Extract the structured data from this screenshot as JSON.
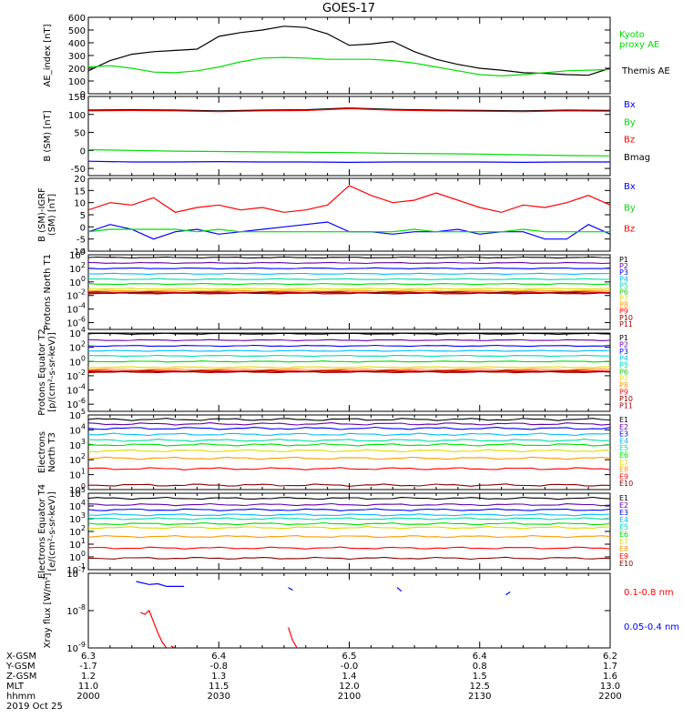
{
  "title": "GOES-17",
  "colors": {
    "black": "#000000",
    "red": "#ff0000",
    "green": "#00dd00",
    "blue": "#0000ff",
    "darkred": "#8b0000",
    "purple": "#6600aa",
    "navy": "#000099",
    "cyan": "#00bbff",
    "teal": "#00ddaa",
    "lime": "#66dd00",
    "yellow": "#dddd00",
    "orange": "#ff9900"
  },
  "chart_data": [
    {
      "type": "line",
      "ylabel": "AE_index [nT]",
      "ylim": [
        0,
        600
      ],
      "yticks": [
        0,
        100,
        200,
        300,
        400,
        500,
        600
      ],
      "yticklabels": [
        "0",
        "100",
        "200",
        "300",
        "400",
        "500",
        "600"
      ],
      "legend": [
        {
          "label": "Kyoto",
          "color": "#00dd00"
        },
        {
          "label": "proxy AE",
          "color": "#00dd00"
        },
        {
          "label": "Themis AE",
          "color": "#000000"
        }
      ],
      "x": [
        0,
        5,
        10,
        15,
        20,
        25,
        30,
        35,
        40,
        45,
        50,
        55,
        60,
        65,
        70,
        75,
        80,
        85,
        90,
        95,
        100,
        105,
        110,
        115,
        120
      ],
      "series": [
        {
          "name": "Themis AE",
          "color": "#000000",
          "values": [
            180,
            260,
            310,
            330,
            340,
            350,
            450,
            480,
            500,
            530,
            520,
            470,
            380,
            390,
            410,
            330,
            270,
            230,
            200,
            185,
            165,
            160,
            150,
            145,
            200
          ]
        },
        {
          "name": "Kyoto proxy AE",
          "color": "#00dd00",
          "values": [
            210,
            220,
            200,
            170,
            165,
            180,
            210,
            250,
            280,
            285,
            280,
            270,
            270,
            270,
            260,
            240,
            210,
            180,
            150,
            140,
            150,
            165,
            180,
            185,
            190
          ]
        }
      ]
    },
    {
      "type": "line",
      "ylabel": "B (SM) [nT]",
      "ylim": [
        -70,
        150
      ],
      "yticks": [
        -50,
        0,
        50,
        100,
        150
      ],
      "yticklabels": [
        "-50",
        "0",
        "50",
        "100",
        "150"
      ],
      "legend": [
        {
          "label": "Bx",
          "color": "#0000ff"
        },
        {
          "label": "By",
          "color": "#00dd00"
        },
        {
          "label": "Bz",
          "color": "#ff0000"
        },
        {
          "label": "Bmag",
          "color": "#000000"
        }
      ],
      "x": [
        0,
        10,
        20,
        30,
        40,
        50,
        60,
        70,
        80,
        90,
        100,
        110,
        120
      ],
      "series": [
        {
          "name": "Bmag",
          "color": "#000000",
          "values": [
            112,
            113,
            112,
            110,
            112,
            113,
            118,
            114,
            112,
            111,
            110,
            112,
            111
          ]
        },
        {
          "name": "Bz",
          "color": "#ff0000",
          "values": [
            110,
            111,
            110,
            108,
            110,
            111,
            116,
            112,
            110,
            109,
            108,
            110,
            109
          ]
        },
        {
          "name": "By",
          "color": "#00dd00",
          "values": [
            2,
            0,
            -2,
            -3,
            -4,
            -5,
            -6,
            -8,
            -9,
            -10,
            -12,
            -14,
            -15
          ]
        },
        {
          "name": "Bx",
          "color": "#0000ff",
          "values": [
            -30,
            -32,
            -32,
            -31,
            -32,
            -32,
            -33,
            -32,
            -32,
            -32,
            -33,
            -32,
            -32
          ]
        }
      ]
    },
    {
      "type": "line",
      "ylabel": "B (SM)-IGRF (SM) [nT]",
      "ylim": [
        -10,
        20
      ],
      "yticks": [
        -10,
        -5,
        0,
        5,
        10,
        15,
        20
      ],
      "yticklabels": [
        "-10",
        "-5",
        "0",
        "5",
        "10",
        "15",
        "20"
      ],
      "legend": [
        {
          "label": "Bx",
          "color": "#0000ff"
        },
        {
          "label": "By",
          "color": "#00dd00"
        },
        {
          "label": "Bz",
          "color": "#ff0000"
        }
      ],
      "x": [
        0,
        5,
        10,
        15,
        20,
        25,
        30,
        35,
        40,
        45,
        50,
        55,
        60,
        65,
        70,
        75,
        80,
        85,
        90,
        95,
        100,
        105,
        110,
        115,
        120
      ],
      "series": [
        {
          "name": "Bz",
          "color": "#ff0000",
          "values": [
            7,
            10,
            9,
            12,
            6,
            8,
            9,
            7,
            8,
            6,
            7,
            9,
            17,
            13,
            10,
            11,
            14,
            11,
            8,
            6,
            9,
            8,
            10,
            13,
            9
          ]
        },
        {
          "name": "Bx",
          "color": "#0000ff",
          "values": [
            -2,
            1,
            -1,
            -5,
            -2,
            -1,
            -3,
            -2,
            -1,
            0,
            1,
            2,
            -2,
            -2,
            -3,
            -2,
            -2,
            -1,
            -3,
            -2,
            -2,
            -5,
            -5,
            1,
            -3
          ]
        },
        {
          "name": "By",
          "color": "#00dd00",
          "values": [
            -2,
            -1,
            -1,
            -1,
            -1,
            -2,
            -1,
            -2,
            -2,
            -2,
            -2,
            -2,
            -2,
            -2,
            -2,
            -1,
            -2,
            -2,
            -2,
            -2,
            -1,
            -2,
            -2,
            -2,
            -2
          ]
        }
      ]
    },
    {
      "type": "line",
      "log": true,
      "ylabel": "Protons North T1",
      "ylim": [
        -7,
        4
      ],
      "yticks": [
        4,
        2,
        0,
        -2,
        -4,
        -6
      ],
      "yticklabels": [
        "10^4",
        "10^2",
        "10^0",
        "10^-2",
        "10^-4",
        "10^-6"
      ],
      "channels": [
        {
          "label": "P1",
          "color": "#000000",
          "value": 3.6
        },
        {
          "label": "P2",
          "color": "#6600aa",
          "value": 2.8
        },
        {
          "label": "P3",
          "color": "#0000ff",
          "value": 2.0
        },
        {
          "label": "P4",
          "color": "#00bbff",
          "value": 1.2
        },
        {
          "label": "P5",
          "color": "#00ddaa",
          "value": 0.4
        },
        {
          "label": "P6",
          "color": "#00dd00",
          "value": -0.3
        },
        {
          "label": "P7",
          "color": "#dddd00",
          "value": -1.0
        },
        {
          "label": "P8",
          "color": "#ff9900",
          "value": -1.3
        },
        {
          "label": "P9",
          "color": "#ff0000",
          "value": -1.5
        },
        {
          "label": "P10",
          "color": "#8b0000",
          "value": -1.6
        },
        {
          "label": "P11",
          "color": "#aa0000",
          "value": -1.7
        }
      ]
    },
    {
      "type": "line",
      "log": true,
      "ylabel": "Protons Equator T2 [p/(cm²-s-sr-keV)]",
      "ylim": [
        -7,
        4
      ],
      "yticks": [
        4,
        2,
        0,
        -2,
        -4,
        -6
      ],
      "yticklabels": [
        "10^4",
        "10^2",
        "10^0",
        "10^-2",
        "10^-4",
        "10^-6"
      ],
      "channels": [
        {
          "label": "P1",
          "color": "#000000",
          "value": 3.9
        },
        {
          "label": "P2",
          "color": "#6600aa",
          "value": 3.0
        },
        {
          "label": "P3",
          "color": "#0000ff",
          "value": 2.2
        },
        {
          "label": "P4",
          "color": "#00bbff",
          "value": 1.5
        },
        {
          "label": "P5",
          "color": "#00ddaa",
          "value": 0.8
        },
        {
          "label": "P6",
          "color": "#00dd00",
          "value": 0.0
        },
        {
          "label": "P7",
          "color": "#dddd00",
          "value": -0.8
        },
        {
          "label": "P8",
          "color": "#ff9900",
          "value": -1.1
        },
        {
          "label": "P9",
          "color": "#ff0000",
          "value": -1.3
        },
        {
          "label": "P10",
          "color": "#8b0000",
          "value": -1.4
        },
        {
          "label": "P11",
          "color": "#aa0000",
          "value": -1.5
        }
      ]
    },
    {
      "type": "line",
      "log": true,
      "ylabel": "Electrons North T3",
      "ylim": [
        0,
        5
      ],
      "yticks": [
        0,
        1,
        2,
        3,
        4,
        5
      ],
      "yticklabels": [
        "10^0",
        "10^1",
        "10^2",
        "10^3",
        "10^4",
        "10^5"
      ],
      "channels": [
        {
          "label": "E1",
          "color": "#000000",
          "value": 4.7
        },
        {
          "label": "E2",
          "color": "#6600aa",
          "value": 4.4
        },
        {
          "label": "E3",
          "color": "#0000ff",
          "value": 4.1
        },
        {
          "label": "E4",
          "color": "#00bbff",
          "value": 3.7
        },
        {
          "label": "E5",
          "color": "#00ddaa",
          "value": 3.3
        },
        {
          "label": "E6",
          "color": "#00dd00",
          "value": 3.0
        },
        {
          "label": "E7",
          "color": "#dddd00",
          "value": 2.6
        },
        {
          "label": "E8",
          "color": "#ff9900",
          "value": 2.1
        },
        {
          "label": "E9",
          "color": "#ff0000",
          "value": 1.4
        },
        {
          "label": "E10",
          "color": "#8b0000",
          "value": 0.3
        }
      ]
    },
    {
      "type": "line",
      "log": true,
      "ylabel": "Electrons Equator T4 [e/(cm²-s-sr-keV)]",
      "ylim": [
        -1,
        5
      ],
      "yticks": [
        -1,
        0,
        1,
        2,
        3,
        4,
        5
      ],
      "yticklabels": [
        "10^-1",
        "10^0",
        "10^1",
        "10^2",
        "10^3",
        "10^4",
        "10^5"
      ],
      "channels": [
        {
          "label": "E1",
          "color": "#000000",
          "value": 4.6
        },
        {
          "label": "E2",
          "color": "#6600aa",
          "value": 4.1
        },
        {
          "label": "E3",
          "color": "#0000ff",
          "value": 3.7
        },
        {
          "label": "E4",
          "color": "#00bbff",
          "value": 3.3
        },
        {
          "label": "E5",
          "color": "#00ddaa",
          "value": 3.0
        },
        {
          "label": "E6",
          "color": "#00dd00",
          "value": 2.6
        },
        {
          "label": "E7",
          "color": "#dddd00",
          "value": 2.3
        },
        {
          "label": "E8",
          "color": "#ff9900",
          "value": 1.6
        },
        {
          "label": "E9",
          "color": "#ff0000",
          "value": 0.7
        },
        {
          "label": "E10",
          "color": "#8b0000",
          "value": -0.1
        }
      ]
    },
    {
      "type": "line",
      "log": true,
      "ylabel": "Xray flux [W/m²]",
      "ylim": [
        -9,
        -7
      ],
      "yticks": [
        -7,
        -8,
        -9
      ],
      "yticklabels": [
        "10^-7",
        "10^-8",
        "10^-9"
      ],
      "legend": [
        {
          "label": "0.1-0.8 nm",
          "color": "#ff0000"
        },
        {
          "label": "0.05-0.4 nm",
          "color": "#0000ff"
        }
      ],
      "series": [
        {
          "name": "0.1-0.8 nm",
          "color": "#ff0000",
          "segments": [
            [
              [
                12,
                -8.05
              ],
              [
                13,
                -8.1
              ],
              [
                14,
                -8.0
              ],
              [
                15,
                -8.3
              ],
              [
                16,
                -8.6
              ],
              [
                17,
                -8.85
              ],
              [
                18,
                -9.0
              ]
            ],
            [
              [
                19,
                -8.95
              ],
              [
                20,
                -9.0
              ]
            ],
            [
              [
                46,
                -8.45
              ],
              [
                47,
                -8.8
              ],
              [
                48,
                -9.0
              ]
            ]
          ]
        },
        {
          "name": "0.05-0.4 nm",
          "color": "#0000ff",
          "segments": [
            [
              [
                11,
                -7.22
              ],
              [
                14,
                -7.3
              ],
              [
                16,
                -7.28
              ],
              [
                18,
                -7.35
              ],
              [
                22,
                -7.35
              ]
            ],
            [
              [
                46,
                -7.38
              ],
              [
                47,
                -7.45
              ]
            ],
            [
              [
                71,
                -7.38
              ],
              [
                72,
                -7.48
              ]
            ],
            [
              [
                96,
                -7.58
              ],
              [
                97,
                -7.5
              ]
            ]
          ]
        }
      ]
    }
  ],
  "x_axis": {
    "rows": [
      {
        "label": "X-GSM",
        "values": [
          "6.3",
          "6.4",
          "6.5",
          "6.4",
          "6.2"
        ]
      },
      {
        "label": "Y-GSM",
        "values": [
          "-1.7",
          "-0.8",
          "-0.0",
          "0.8",
          "1.7"
        ]
      },
      {
        "label": "Z-GSM",
        "values": [
          "1.2",
          "1.3",
          "1.4",
          "1.5",
          "1.6"
        ]
      },
      {
        "label": "MLT",
        "values": [
          "11.0",
          "11.5",
          "12.0",
          "12.5",
          "13.0"
        ]
      },
      {
        "label": "hhmm",
        "values": [
          "2000",
          "2030",
          "2100",
          "2130",
          "2200"
        ]
      }
    ],
    "date": "2019 Oct 25"
  }
}
